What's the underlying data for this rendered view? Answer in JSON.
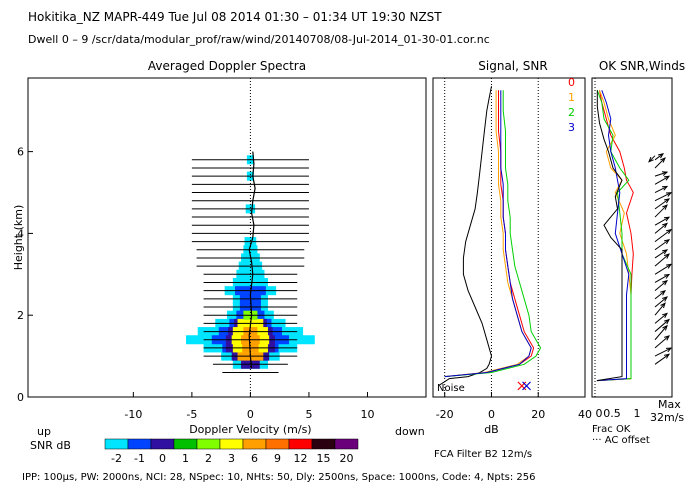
{
  "header": {
    "title": "Hokitika_NZ   MAPR-449   Tue Jul 08 2014 01:30 – 01:34 UT 19:30 NZST",
    "dwell": "Dwell   0 –   9     /scr/data/modular_prof/raw/wind/20140708/08-Jul-2014_01-30-01.cor.nc"
  },
  "footer": {
    "params": "IPP: 100µs,  PW: 2000ns,  NCI:  28,  NSpec: 10,  NHts: 50,  Dly: 2500ns,  Space: 1000ns,  Code: 4,  Npts: 256",
    "filter": "FCA Filter B2 12m/s"
  },
  "colors": {
    "snr_scale": [
      "#00e5ff",
      "#0044ff",
      "#3010a0",
      "#00c000",
      "#80ff00",
      "#ffff00",
      "#ffa000",
      "#ff7000",
      "#ff0000",
      "#2a0010",
      "#6a007a"
    ],
    "beam0": "#ff0000",
    "beam1": "#ffa000",
    "beam2": "#00d000",
    "beam3": "#0000cc"
  },
  "chart_data": [
    {
      "type": "heatmap",
      "title": "Averaged Doppler Spectra",
      "xlabel": "Doppler Velocity (m/s)",
      "ylabel": "Height (km)",
      "xlim": [
        -19,
        15
      ],
      "ylim": [
        0,
        7.8
      ],
      "xticks": [
        -10,
        -5,
        0,
        5,
        10
      ],
      "yticks": [
        0,
        2,
        4,
        6
      ],
      "left_label": "up",
      "right_label": "down",
      "colorbar": {
        "label": "SNR dB",
        "ticks": [
          "-2",
          "-1",
          "0",
          "1",
          "2",
          "3",
          "6",
          "9",
          "12",
          "15",
          "20"
        ]
      },
      "heights": [
        0.6,
        0.8,
        1.0,
        1.2,
        1.4,
        1.6,
        1.8,
        2.0,
        2.2,
        2.4,
        2.6,
        2.8,
        3.0,
        3.2,
        3.4,
        3.6,
        3.8,
        4.0,
        4.2,
        4.4,
        4.6,
        4.8,
        5.0,
        5.2,
        5.4,
        5.6,
        5.8
      ],
      "bar_halfwidth": [
        2.4,
        3.2,
        4.0,
        4.0,
        4.0,
        4.0,
        4.0,
        4.0,
        4.0,
        4.0,
        4.0,
        4.0,
        4.0,
        4.6,
        4.6,
        4.6,
        5.0,
        5.0,
        5.0,
        5.0,
        5.0,
        5.0,
        5.0,
        5.0,
        5.0,
        5.0,
        5.0
      ],
      "spectrum": [
        {
          "h": 0.8,
          "level": 0,
          "hw": 1.5
        },
        {
          "h": 1.0,
          "level": 1,
          "hw": 2.5
        },
        {
          "h": 1.2,
          "level": 1,
          "hw": 4.0
        },
        {
          "h": 1.4,
          "level": 1,
          "hw": 5.5
        },
        {
          "h": 1.6,
          "level": 1,
          "hw": 4.5
        },
        {
          "h": 1.8,
          "level": 1,
          "hw": 3.0
        },
        {
          "h": 2.0,
          "level": 1,
          "hw": 2.0
        },
        {
          "h": 2.2,
          "level": 1,
          "hw": 1.5
        },
        {
          "h": 2.4,
          "level": 1,
          "hw": 1.5
        },
        {
          "h": 2.6,
          "level": 1,
          "hw": 2.2
        },
        {
          "h": 2.8,
          "level": 0,
          "hw": 1.5
        },
        {
          "h": 3.0,
          "level": 0,
          "hw": 1.2
        },
        {
          "h": 3.2,
          "level": 0,
          "hw": 1.0
        },
        {
          "h": 3.4,
          "level": 0,
          "hw": 0.8
        },
        {
          "h": 3.6,
          "level": 0,
          "hw": 0.6
        },
        {
          "h": 3.8,
          "level": 0,
          "hw": 0.5
        },
        {
          "h": 4.6,
          "level": 0,
          "hw": 0.4
        },
        {
          "h": 5.4,
          "level": 0,
          "hw": 0.3
        },
        {
          "h": 5.8,
          "level": 0,
          "hw": 0.3
        }
      ],
      "core": [
        {
          "h": 0.8,
          "hw": 0.8,
          "c": "#3010a0"
        },
        {
          "h": 1.0,
          "hw": 1.6,
          "c": "#3010a0"
        },
        {
          "h": 1.2,
          "hw": 2.1,
          "c": "#3010a0"
        },
        {
          "h": 1.4,
          "hw": 2.1,
          "c": "#3010a0"
        },
        {
          "h": 1.6,
          "hw": 1.9,
          "c": "#3010a0"
        },
        {
          "h": 1.8,
          "hw": 1.4,
          "c": "#3010a0"
        },
        {
          "h": 2.0,
          "hw": 1.0,
          "c": "#0044ff"
        },
        {
          "h": 2.2,
          "hw": 0.7,
          "c": "#0044ff"
        },
        {
          "h": 1.0,
          "hw": 1.1,
          "c": "#ffa000"
        },
        {
          "h": 1.2,
          "hw": 1.5,
          "c": "#ffff00"
        },
        {
          "h": 1.4,
          "hw": 1.6,
          "c": "#ffff00"
        },
        {
          "h": 1.6,
          "hw": 1.5,
          "c": "#ffff00"
        },
        {
          "h": 1.8,
          "hw": 1.1,
          "c": "#ffff00"
        },
        {
          "h": 2.0,
          "hw": 0.6,
          "c": "#80ff00"
        },
        {
          "h": 1.2,
          "hw": 0.7,
          "c": "#ffa000"
        },
        {
          "h": 1.4,
          "hw": 0.8,
          "c": "#ffa000"
        },
        {
          "h": 1.6,
          "hw": 0.6,
          "c": "#ffa000"
        }
      ],
      "center_trace": {
        "h": [
          0.7,
          1.0,
          1.5,
          2.0,
          2.5,
          3.0,
          3.3,
          3.6,
          3.9,
          4.2,
          4.5,
          4.8,
          5.1,
          5.4,
          5.7,
          6.0
        ],
        "v": [
          0.1,
          0.0,
          -0.1,
          0.1,
          0.0,
          0.2,
          0.1,
          -0.1,
          0.2,
          0.3,
          0.1,
          0.2,
          0.4,
          0.2,
          0.3,
          0.2
        ]
      }
    },
    {
      "type": "line",
      "title": "Signal, SNR",
      "xlabel": "dB",
      "xlim": [
        -25,
        40
      ],
      "ylim": [
        0,
        7.8
      ],
      "xticks": [
        -20,
        0,
        20,
        40
      ],
      "noise_label": "Noise",
      "beams": [
        "0",
        "1",
        "2",
        "3"
      ],
      "series": [
        {
          "name": "noise",
          "h": [
            0.3,
            0.45,
            0.5,
            0.6,
            0.7,
            0.8,
            1.0,
            1.4,
            1.8,
            2.2,
            2.6,
            3.0,
            3.4,
            3.8,
            4.2,
            4.6,
            5.0,
            5.5,
            6.0,
            6.5,
            7.0,
            7.3,
            7.6
          ],
          "v": [
            -22,
            -18,
            -10,
            -5,
            -2,
            -1,
            0,
            -2,
            -4,
            -7,
            -10,
            -12,
            -12,
            -11,
            -9,
            -7,
            -6,
            -5,
            -4,
            -3,
            -2,
            -1,
            0
          ]
        },
        {
          "name": "0",
          "h": [
            0.5,
            0.6,
            0.8,
            1.0,
            1.2,
            1.4,
            1.6,
            2.0,
            2.4,
            2.8,
            3.2,
            3.6,
            4.0,
            4.4,
            4.8,
            5.2,
            5.6,
            6.0,
            6.5,
            7.0,
            7.5
          ],
          "v": [
            -20,
            -2,
            12,
            17,
            18,
            16,
            14,
            12,
            10,
            8,
            7,
            6,
            6,
            5,
            5,
            4,
            4,
            4,
            3,
            3,
            3
          ]
        },
        {
          "name": "1",
          "h": [
            0.5,
            0.6,
            0.8,
            1.0,
            1.2,
            1.4,
            1.6,
            2.0,
            2.4,
            2.8,
            3.2,
            3.6,
            4.0,
            4.4,
            4.8,
            5.2,
            5.6,
            6.0,
            6.5,
            7.0,
            7.5
          ],
          "v": [
            -20,
            -3,
            11,
            16,
            17,
            15,
            13,
            11,
            9,
            7,
            6,
            5,
            5,
            4,
            4,
            3,
            3,
            3,
            2,
            2,
            2
          ]
        },
        {
          "name": "2",
          "h": [
            0.5,
            0.6,
            0.8,
            1.0,
            1.2,
            1.4,
            1.6,
            2.0,
            2.4,
            2.8,
            3.2,
            3.6,
            4.0,
            4.4,
            4.8,
            5.2,
            5.6,
            6.0,
            6.5,
            7.0,
            7.5
          ],
          "v": [
            -20,
            0,
            14,
            19,
            21,
            19,
            17,
            16,
            14,
            12,
            10,
            9,
            8,
            8,
            7,
            7,
            6,
            6,
            6,
            5,
            5
          ]
        },
        {
          "name": "3",
          "h": [
            0.5,
            0.6,
            0.8,
            1.0,
            1.2,
            1.4,
            1.6,
            2.0,
            2.4,
            2.8,
            3.2,
            3.6,
            4.0,
            4.4,
            4.8,
            5.2,
            5.6,
            6.0,
            6.5,
            7.0,
            7.5
          ],
          "v": [
            -20,
            -2,
            12,
            16,
            17,
            15,
            13,
            11,
            9,
            8,
            7,
            6,
            6,
            5,
            5,
            5,
            4,
            4,
            4,
            4,
            4
          ]
        }
      ],
      "markers": [
        {
          "v": 13,
          "h": 0.15
        },
        {
          "v": 15,
          "h": 0.15
        }
      ]
    },
    {
      "type": "line",
      "title": "OK SNR,Winds",
      "xlim": [
        0,
        1
      ],
      "ylim": [
        0,
        7.8
      ],
      "xticks": [
        "0.5",
        "1"
      ],
      "labels": {
        "frac": "Frac OK",
        "offset": "··· AC offset",
        "max": "Max",
        "speed": "32m/s"
      },
      "series": [
        {
          "name": "0",
          "h": [
            0.4,
            0.45,
            1.0,
            1.5,
            2.0,
            2.5,
            3.0,
            3.5,
            4.0,
            4.5,
            5.0,
            5.3,
            5.6,
            6.0,
            6.4,
            6.8,
            7.2,
            7.5
          ],
          "v": [
            0.05,
            0.8,
            0.8,
            0.8,
            0.8,
            0.8,
            0.82,
            0.85,
            0.8,
            0.7,
            0.85,
            0.7,
            0.65,
            0.55,
            0.35,
            0.25,
            0.15,
            0.1
          ]
        },
        {
          "name": "1",
          "h": [
            0.4,
            0.45,
            1.0,
            1.5,
            2.0,
            2.5,
            3.0,
            3.5,
            4.0,
            4.5,
            5.0,
            5.3,
            5.6,
            6.0,
            6.4,
            6.8,
            7.2,
            7.5
          ],
          "v": [
            0.05,
            0.8,
            0.8,
            0.8,
            0.8,
            0.8,
            0.75,
            0.7,
            0.55,
            0.65,
            0.45,
            0.6,
            0.35,
            0.25,
            0.45,
            0.3,
            0.2,
            0.1
          ]
        },
        {
          "name": "2",
          "h": [
            0.4,
            0.45,
            1.0,
            1.5,
            2.0,
            2.5,
            3.0,
            3.5,
            4.0,
            4.5,
            5.0,
            5.3,
            5.6,
            6.0,
            6.4,
            6.8,
            7.2,
            7.5
          ],
          "v": [
            0.05,
            0.8,
            0.8,
            0.8,
            0.8,
            0.8,
            0.8,
            0.6,
            0.6,
            0.55,
            0.5,
            0.75,
            0.55,
            0.35,
            0.4,
            0.2,
            0.15,
            0.05
          ]
        },
        {
          "name": "3",
          "h": [
            0.4,
            0.45,
            1.0,
            1.5,
            2.0,
            2.5,
            3.0,
            3.5,
            4.0,
            4.5,
            5.0,
            5.3,
            5.6,
            6.0,
            6.4,
            6.8,
            7.2,
            7.5
          ],
          "v": [
            0.05,
            0.7,
            0.7,
            0.7,
            0.7,
            0.7,
            0.75,
            0.6,
            0.45,
            0.5,
            0.55,
            0.5,
            0.45,
            0.35,
            0.3,
            0.35,
            0.25,
            0.15
          ]
        },
        {
          "name": "frac",
          "h": [
            0.4,
            0.5,
            1.0,
            2.0,
            3.0,
            3.6,
            3.9,
            4.2,
            4.6,
            4.9,
            5.3,
            5.6,
            6.0,
            6.3,
            6.7,
            7.1,
            7.5
          ],
          "v": [
            0.04,
            0.6,
            0.6,
            0.6,
            0.6,
            0.6,
            0.35,
            0.2,
            0.5,
            0.45,
            0.6,
            0.4,
            0.3,
            0.2,
            0.1,
            0.05,
            0.05
          ]
        }
      ],
      "winds": [
        {
          "h": 0.8,
          "u": 0.7,
          "v": 0.5
        },
        {
          "h": 1.0,
          "u": 0.8,
          "v": 0.4
        },
        {
          "h": 1.2,
          "u": 0.7,
          "v": 0.6
        },
        {
          "h": 1.4,
          "u": 0.6,
          "v": 0.7
        },
        {
          "h": 1.6,
          "u": 0.7,
          "v": 0.6
        },
        {
          "h": 1.8,
          "u": 0.6,
          "v": 0.5
        },
        {
          "h": 2.0,
          "u": 0.5,
          "v": 0.6
        },
        {
          "h": 2.2,
          "u": 0.6,
          "v": 0.5
        },
        {
          "h": 2.4,
          "u": 0.5,
          "v": 0.4
        },
        {
          "h": 2.6,
          "u": 0.6,
          "v": 0.5
        },
        {
          "h": 2.8,
          "u": 0.7,
          "v": 0.4
        },
        {
          "h": 3.0,
          "u": 0.8,
          "v": 0.5
        },
        {
          "h": 3.2,
          "u": 0.7,
          "v": 0.6
        },
        {
          "h": 3.4,
          "u": 0.6,
          "v": 0.4
        },
        {
          "h": 3.6,
          "u": 0.7,
          "v": 0.5
        },
        {
          "h": 3.8,
          "u": 0.8,
          "v": 0.6
        },
        {
          "h": 4.0,
          "u": 0.6,
          "v": 0.5
        },
        {
          "h": 4.2,
          "u": 0.7,
          "v": 0.4
        },
        {
          "h": 4.4,
          "u": 0.6,
          "v": 0.6
        },
        {
          "h": 4.6,
          "u": 0.7,
          "v": 0.5
        },
        {
          "h": 4.8,
          "u": 0.8,
          "v": 0.4
        },
        {
          "h": 5.0,
          "u": 0.6,
          "v": 0.3
        },
        {
          "h": 5.2,
          "u": 0.7,
          "v": 0.4
        },
        {
          "h": 5.4,
          "u": 0.6,
          "v": 0.2
        },
        {
          "h": 5.6,
          "u": 0.5,
          "v": 0.5
        },
        {
          "h": 5.9,
          "u": -0.3,
          "v": -0.3
        },
        {
          "h": 5.8,
          "u": 0.4,
          "v": 0.3
        }
      ]
    }
  ]
}
